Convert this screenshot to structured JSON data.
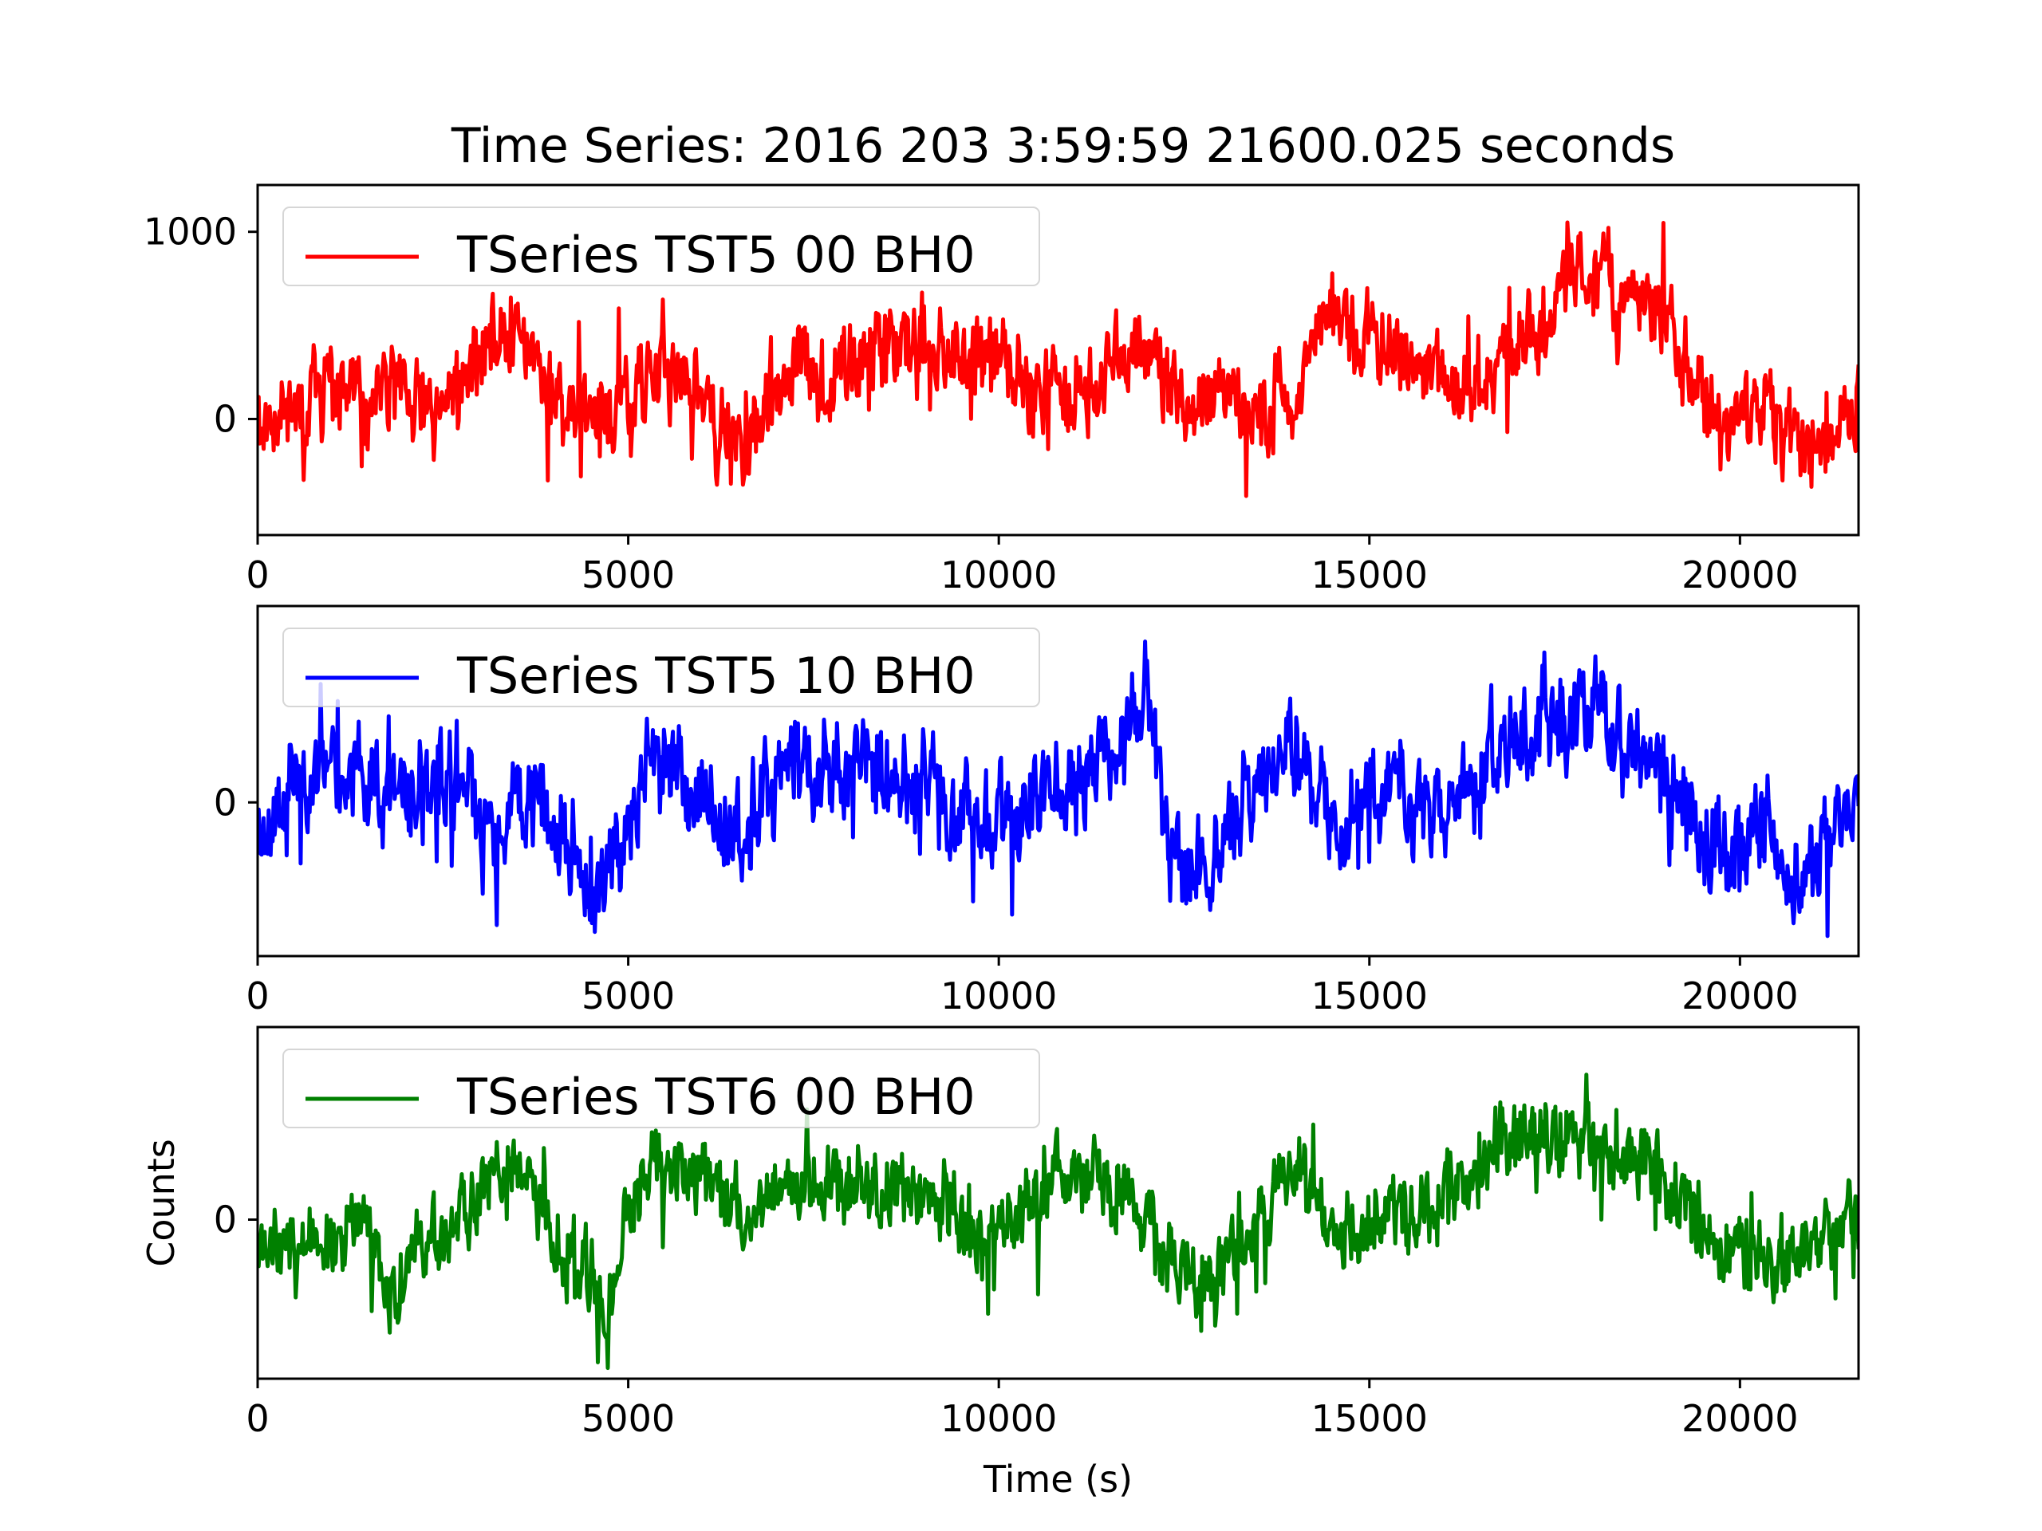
{
  "title": "Time Series: 2016 203 3:59:59 21600.025 seconds",
  "chart_data": [
    {
      "type": "line",
      "legend": "TSeries TST5 00 BH0",
      "legend_loc": "upper-left",
      "color": "#ff0000",
      "xlim": [
        0,
        21600.025
      ],
      "ylim": [
        -620,
        1250
      ],
      "xticks": [
        0,
        5000,
        10000,
        15000,
        20000
      ],
      "yticks": [
        0,
        1000
      ],
      "xlabel": "",
      "ylabel": "",
      "base": [
        [
          0,
          30
        ],
        [
          600,
          90
        ],
        [
          1200,
          150
        ],
        [
          1800,
          110
        ],
        [
          2400,
          50
        ],
        [
          2700,
          120
        ],
        [
          3000,
          380
        ],
        [
          3300,
          450
        ],
        [
          3600,
          420
        ],
        [
          3900,
          200
        ],
        [
          4200,
          100
        ],
        [
          4600,
          30
        ],
        [
          5000,
          130
        ],
        [
          5400,
          250
        ],
        [
          5800,
          200
        ],
        [
          6100,
          40
        ],
        [
          6500,
          -150
        ],
        [
          6900,
          120
        ],
        [
          7300,
          270
        ],
        [
          7700,
          180
        ],
        [
          8100,
          340
        ],
        [
          8500,
          370
        ],
        [
          9000,
          350
        ],
        [
          9400,
          290
        ],
        [
          9800,
          300
        ],
        [
          10200,
          280
        ],
        [
          10600,
          120
        ],
        [
          11000,
          110
        ],
        [
          11400,
          240
        ],
        [
          11900,
          380
        ],
        [
          12300,
          200
        ],
        [
          12700,
          70
        ],
        [
          13100,
          110
        ],
        [
          13600,
          80
        ],
        [
          14100,
          160
        ],
        [
          14400,
          610
        ],
        [
          14800,
          430
        ],
        [
          15200,
          380
        ],
        [
          15600,
          250
        ],
        [
          16000,
          190
        ],
        [
          16600,
          310
        ],
        [
          17000,
          460
        ],
        [
          17500,
          570
        ],
        [
          17900,
          820
        ],
        [
          18300,
          660
        ],
        [
          18700,
          640
        ],
        [
          19000,
          520
        ],
        [
          19400,
          140
        ],
        [
          19800,
          -80
        ],
        [
          20300,
          80
        ],
        [
          20800,
          -120
        ],
        [
          21200,
          -120
        ],
        [
          21600,
          120
        ]
      ],
      "noise": 170,
      "seed": 11
    },
    {
      "type": "line",
      "legend": "TSeries TST5 10 BH0",
      "legend_loc": "upper-left",
      "color": "#0000ff",
      "xlim": [
        0,
        21600.025
      ],
      "ylim": [
        -900,
        1150
      ],
      "xticks": [
        0,
        5000,
        10000,
        15000,
        20000
      ],
      "yticks": [
        0
      ],
      "xlabel": "",
      "ylabel": "",
      "base": [
        [
          0,
          -150
        ],
        [
          500,
          100
        ],
        [
          1000,
          200
        ],
        [
          1500,
          80
        ],
        [
          2000,
          0
        ],
        [
          2400,
          120
        ],
        [
          2800,
          80
        ],
        [
          3100,
          -250
        ],
        [
          3500,
          50
        ],
        [
          3900,
          -100
        ],
        [
          4300,
          -350
        ],
        [
          4700,
          -550
        ],
        [
          5000,
          -50
        ],
        [
          5400,
          220
        ],
        [
          6000,
          100
        ],
        [
          6500,
          -200
        ],
        [
          6900,
          100
        ],
        [
          7500,
          170
        ],
        [
          8100,
          200
        ],
        [
          8600,
          150
        ],
        [
          9000,
          180
        ],
        [
          9300,
          -120
        ],
        [
          9800,
          -100
        ],
        [
          10300,
          -40
        ],
        [
          10800,
          40
        ],
        [
          11300,
          150
        ],
        [
          11700,
          300
        ],
        [
          12000,
          700
        ],
        [
          12300,
          -200
        ],
        [
          12700,
          -450
        ],
        [
          13100,
          -200
        ],
        [
          13500,
          150
        ],
        [
          13900,
          420
        ],
        [
          14200,
          150
        ],
        [
          14600,
          -180
        ],
        [
          15000,
          -40
        ],
        [
          15500,
          100
        ],
        [
          16000,
          40
        ],
        [
          16500,
          200
        ],
        [
          17000,
          420
        ],
        [
          17600,
          520
        ],
        [
          18200,
          520
        ],
        [
          18700,
          280
        ],
        [
          19200,
          -50
        ],
        [
          19600,
          -250
        ],
        [
          20000,
          -300
        ],
        [
          20400,
          -120
        ],
        [
          20700,
          -450
        ],
        [
          21100,
          -300
        ],
        [
          21600,
          -80
        ]
      ],
      "noise": 210,
      "seed": 23
    },
    {
      "type": "line",
      "legend": "TSeries TST6 00 BH0",
      "legend_loc": "upper-left",
      "color": "#008000",
      "xlim": [
        0,
        21600.025
      ],
      "ylim": [
        -950,
        1150
      ],
      "xticks": [
        0,
        5000,
        10000,
        15000,
        20000
      ],
      "yticks": [
        0
      ],
      "xlabel": "Time (s)",
      "ylabel": "Counts",
      "base": [
        [
          0,
          -50
        ],
        [
          500,
          -130
        ],
        [
          1000,
          -150
        ],
        [
          1400,
          20
        ],
        [
          1800,
          -380
        ],
        [
          2200,
          -150
        ],
        [
          2600,
          -50
        ],
        [
          3000,
          120
        ],
        [
          3500,
          400
        ],
        [
          4000,
          -100
        ],
        [
          4400,
          -280
        ],
        [
          4700,
          -480
        ],
        [
          5000,
          100
        ],
        [
          5400,
          330
        ],
        [
          6000,
          200
        ],
        [
          6500,
          60
        ],
        [
          7000,
          200
        ],
        [
          7600,
          250
        ],
        [
          8200,
          220
        ],
        [
          8800,
          150
        ],
        [
          9300,
          150
        ],
        [
          9700,
          -100
        ],
        [
          10300,
          50
        ],
        [
          10800,
          300
        ],
        [
          11300,
          260
        ],
        [
          11800,
          100
        ],
        [
          12300,
          -200
        ],
        [
          12800,
          -420
        ],
        [
          13300,
          -100
        ],
        [
          13800,
          250
        ],
        [
          14200,
          200
        ],
        [
          14600,
          -180
        ],
        [
          15100,
          30
        ],
        [
          15600,
          0
        ],
        [
          16200,
          180
        ],
        [
          16700,
          400
        ],
        [
          17200,
          560
        ],
        [
          17800,
          450
        ],
        [
          18400,
          420
        ],
        [
          18900,
          300
        ],
        [
          19400,
          0
        ],
        [
          19900,
          -200
        ],
        [
          20300,
          -180
        ],
        [
          20700,
          -300
        ],
        [
          21100,
          -150
        ],
        [
          21600,
          50
        ]
      ],
      "noise": 170,
      "seed": 37
    }
  ]
}
